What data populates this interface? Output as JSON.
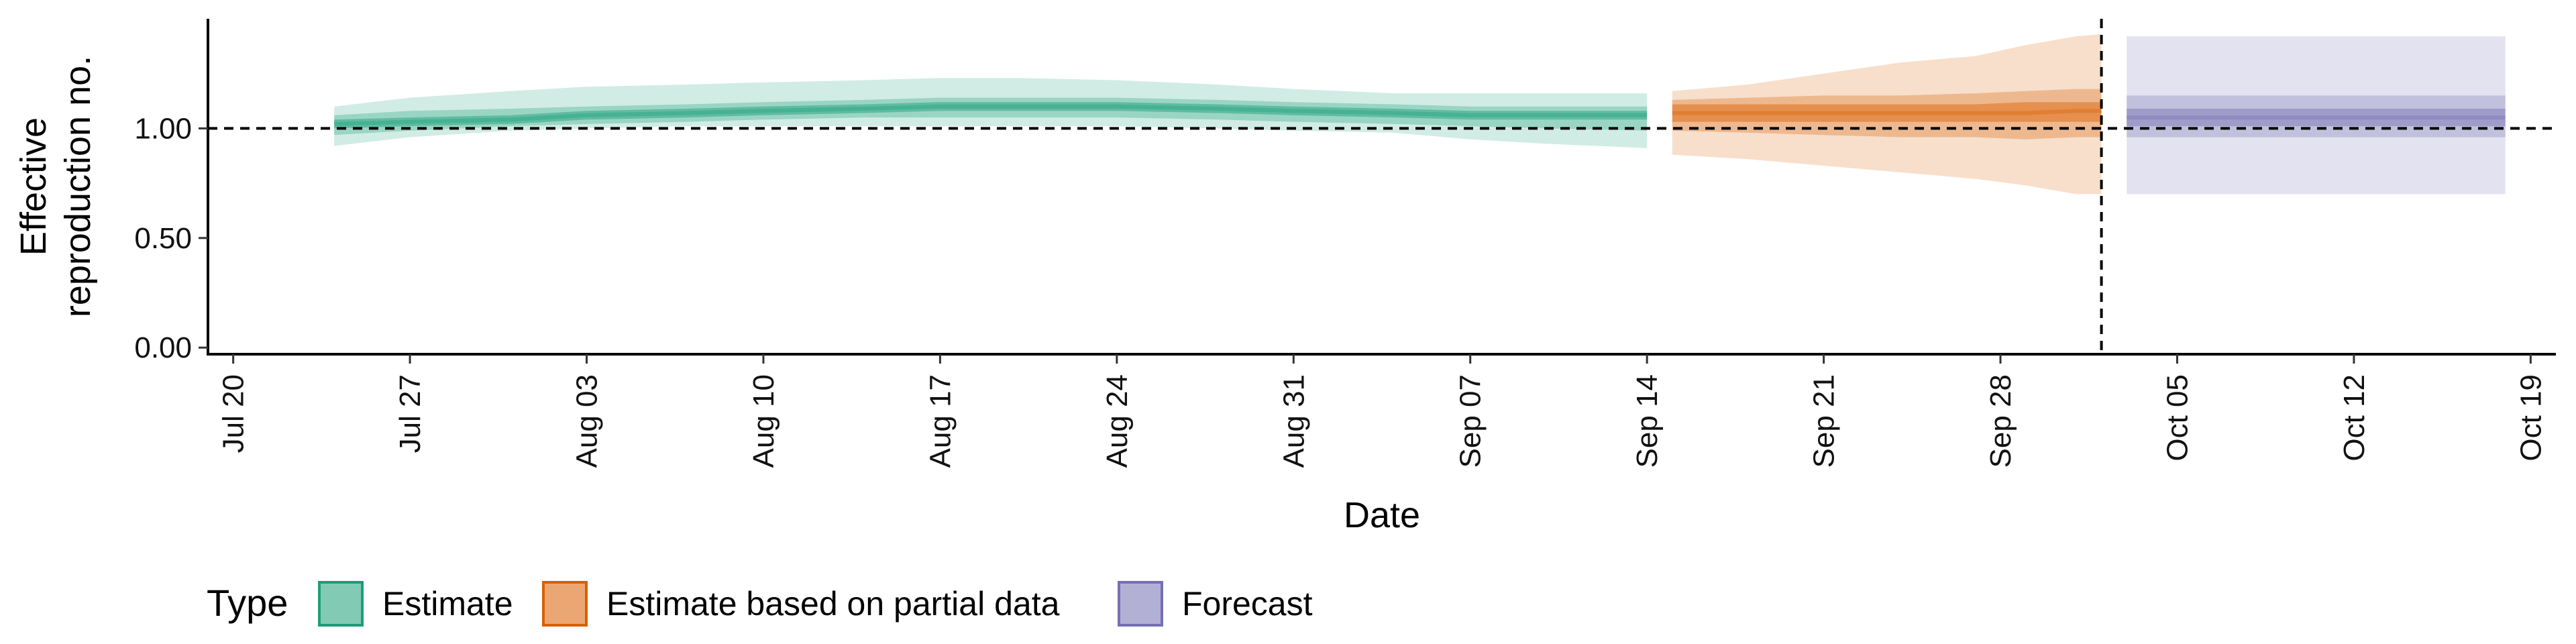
{
  "chart_data": {
    "type": "area",
    "xlabel": "Date",
    "ylabel_lines": [
      "Effective",
      "reproduction no."
    ],
    "xlim": [
      "2020-07-19",
      "2020-10-20"
    ],
    "ylim": [
      -0.03,
      1.5
    ],
    "x_ticks": [
      {
        "date": "2020-07-20",
        "label": "Jul 20"
      },
      {
        "date": "2020-07-27",
        "label": "Jul 27"
      },
      {
        "date": "2020-08-03",
        "label": "Aug 03"
      },
      {
        "date": "2020-08-10",
        "label": "Aug 10"
      },
      {
        "date": "2020-08-17",
        "label": "Aug 17"
      },
      {
        "date": "2020-08-24",
        "label": "Aug 24"
      },
      {
        "date": "2020-08-31",
        "label": "Aug 31"
      },
      {
        "date": "2020-09-07",
        "label": "Sep 07"
      },
      {
        "date": "2020-09-14",
        "label": "Sep 14"
      },
      {
        "date": "2020-09-21",
        "label": "Sep 21"
      },
      {
        "date": "2020-09-28",
        "label": "Sep 28"
      },
      {
        "date": "2020-10-05",
        "label": "Oct 05"
      },
      {
        "date": "2020-10-12",
        "label": "Oct 12"
      },
      {
        "date": "2020-10-19",
        "label": "Oct 19"
      }
    ],
    "y_ticks": [
      {
        "value": 0.0,
        "label": "0.00"
      },
      {
        "value": 0.5,
        "label": "0.50"
      },
      {
        "value": 1.0,
        "label": "1.00"
      }
    ],
    "reference_hline": 1.0,
    "reference_vline_date": "2020-10-02",
    "grid": false,
    "legend": {
      "title": "Type",
      "position": "bottom",
      "entries": [
        "Estimate",
        "Estimate based on partial data",
        "Forecast"
      ]
    },
    "series": [
      {
        "name": "Estimate",
        "fill": "#1b9e77",
        "stroke": "#1b9e77",
        "x": [
          "2020-07-24",
          "2020-07-27",
          "2020-07-31",
          "2020-08-03",
          "2020-08-07",
          "2020-08-10",
          "2020-08-14",
          "2020-08-17",
          "2020-08-20",
          "2020-08-24",
          "2020-08-28",
          "2020-08-31",
          "2020-09-04",
          "2020-09-07",
          "2020-09-10",
          "2020-09-14"
        ],
        "median": [
          1.02,
          1.03,
          1.04,
          1.06,
          1.07,
          1.08,
          1.09,
          1.1,
          1.1,
          1.1,
          1.09,
          1.08,
          1.07,
          1.06,
          1.06,
          1.06
        ],
        "lower_outer": [
          0.92,
          0.96,
          0.99,
          1.0,
          1.01,
          1.01,
          1.01,
          1.01,
          1.01,
          1.01,
          1.0,
          0.99,
          0.98,
          0.95,
          0.93,
          0.91
        ],
        "upper_outer": [
          1.1,
          1.14,
          1.17,
          1.19,
          1.2,
          1.21,
          1.22,
          1.23,
          1.23,
          1.22,
          1.2,
          1.18,
          1.16,
          1.16,
          1.16,
          1.16
        ],
        "lower_mid": [
          0.97,
          0.99,
          1.01,
          1.02,
          1.03,
          1.04,
          1.05,
          1.05,
          1.05,
          1.05,
          1.04,
          1.03,
          1.02,
          1.01,
          1.0,
          0.99
        ],
        "upper_mid": [
          1.06,
          1.08,
          1.09,
          1.1,
          1.11,
          1.12,
          1.13,
          1.14,
          1.14,
          1.14,
          1.13,
          1.12,
          1.11,
          1.1,
          1.1,
          1.1
        ],
        "lower_inner": [
          1.0,
          1.01,
          1.02,
          1.04,
          1.05,
          1.06,
          1.07,
          1.08,
          1.08,
          1.08,
          1.07,
          1.06,
          1.05,
          1.04,
          1.04,
          1.04
        ],
        "upper_inner": [
          1.04,
          1.05,
          1.06,
          1.08,
          1.09,
          1.1,
          1.11,
          1.12,
          1.12,
          1.12,
          1.11,
          1.1,
          1.09,
          1.08,
          1.08,
          1.08
        ]
      },
      {
        "name": "Estimate based on partial data",
        "fill": "#d95f02",
        "stroke": "#d95f02",
        "x": [
          "2020-09-15",
          "2020-09-18",
          "2020-09-21",
          "2020-09-24",
          "2020-09-27",
          "2020-09-29",
          "2020-10-01",
          "2020-10-02"
        ],
        "median": [
          1.07,
          1.07,
          1.07,
          1.07,
          1.07,
          1.07,
          1.08,
          1.08
        ],
        "lower_outer": [
          0.88,
          0.86,
          0.83,
          0.8,
          0.77,
          0.74,
          0.7,
          0.7
        ],
        "upper_outer": [
          1.17,
          1.2,
          1.25,
          1.3,
          1.33,
          1.38,
          1.42,
          1.43
        ],
        "lower_mid": [
          0.99,
          0.98,
          0.97,
          0.96,
          0.96,
          0.95,
          0.96,
          0.96
        ],
        "upper_mid": [
          1.13,
          1.14,
          1.15,
          1.15,
          1.16,
          1.17,
          1.18,
          1.18
        ],
        "lower_inner": [
          1.03,
          1.03,
          1.03,
          1.03,
          1.03,
          1.03,
          1.03,
          1.03
        ],
        "upper_inner": [
          1.11,
          1.11,
          1.11,
          1.11,
          1.11,
          1.12,
          1.12,
          1.12
        ]
      },
      {
        "name": "Forecast",
        "fill": "#7570b3",
        "stroke": "#7570b3",
        "x": [
          "2020-10-03",
          "2020-10-18"
        ],
        "median": [
          1.05,
          1.05
        ],
        "lower_outer": [
          0.7,
          0.7
        ],
        "upper_outer": [
          1.42,
          1.42
        ],
        "lower_mid": [
          0.96,
          0.96
        ],
        "upper_mid": [
          1.15,
          1.15
        ],
        "lower_inner": [
          1.01,
          1.01
        ],
        "upper_inner": [
          1.09,
          1.09
        ]
      }
    ]
  }
}
